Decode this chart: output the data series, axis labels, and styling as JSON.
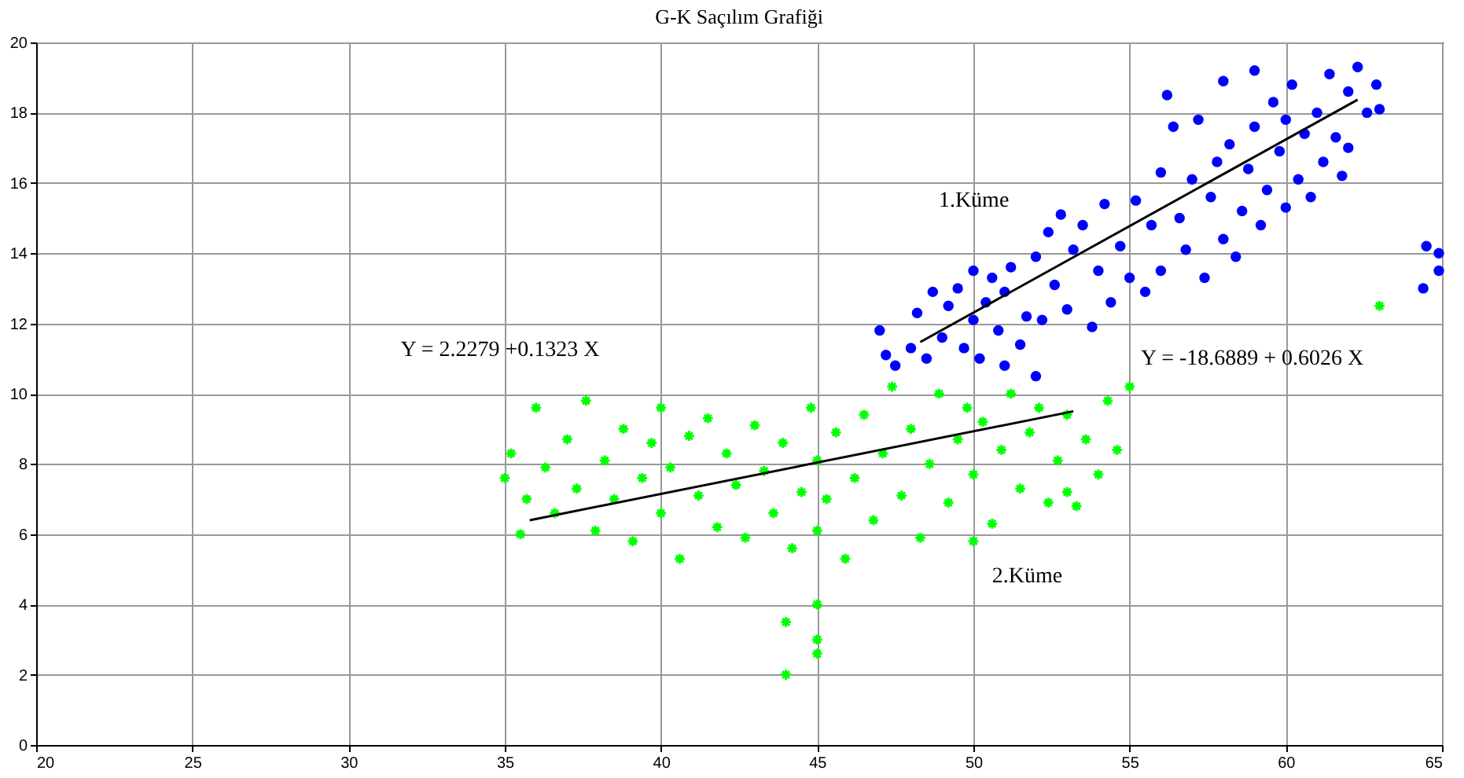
{
  "chart_data": {
    "type": "scatter",
    "title": "G-K Saçılım Grafiği",
    "xlim": [
      20,
      65
    ],
    "ylim": [
      0,
      20
    ],
    "xticks": [
      20,
      25,
      30,
      35,
      40,
      45,
      50,
      55,
      60,
      65
    ],
    "yticks": [
      0,
      2,
      4,
      6,
      8,
      10,
      12,
      14,
      16,
      18,
      20
    ],
    "grid": true,
    "series": [
      {
        "color": "#0000ff",
        "marker": "circle",
        "x": [
          47,
          47.2,
          47.5,
          48,
          48.2,
          48.5,
          48.7,
          49,
          49.2,
          49.5,
          49.7,
          50,
          50,
          50.2,
          50.4,
          50.6,
          50.8,
          51,
          51,
          51.2,
          51.5,
          51.7,
          52,
          52,
          52.2,
          52.4,
          52.6,
          52.8,
          53,
          53.2,
          53.5,
          53.8,
          54,
          54.2,
          54.4,
          54.7,
          55,
          55.2,
          55.5,
          55.7,
          56,
          56,
          56.2,
          56.4,
          56.6,
          56.8,
          57,
          57.2,
          57.4,
          57.6,
          57.8,
          58,
          58,
          58.2,
          58.4,
          58.6,
          58.8,
          59,
          59,
          59.2,
          59.4,
          59.6,
          59.8,
          60,
          60,
          60.2,
          60.4,
          60.6,
          60.8,
          61,
          61.2,
          61.4,
          61.6,
          61.8,
          62,
          62,
          62.3,
          62.6,
          62.9,
          63,
          64.4,
          64.5,
          64.9,
          64.9
        ],
        "values": [
          11.8,
          11.1,
          10.8,
          11.3,
          12.3,
          11.0,
          12.9,
          11.6,
          12.5,
          13.0,
          11.3,
          12.1,
          13.5,
          11.0,
          12.6,
          13.3,
          11.8,
          10.8,
          12.9,
          13.6,
          11.4,
          12.2,
          10.5,
          13.9,
          12.1,
          14.6,
          13.1,
          15.1,
          12.4,
          14.1,
          14.8,
          11.9,
          13.5,
          15.4,
          12.6,
          14.2,
          13.3,
          15.5,
          12.9,
          14.8,
          16.3,
          13.5,
          18.5,
          17.6,
          15.0,
          14.1,
          16.1,
          17.8,
          13.3,
          15.6,
          16.6,
          14.4,
          18.9,
          17.1,
          13.9,
          15.2,
          16.4,
          17.6,
          19.2,
          14.8,
          15.8,
          18.3,
          16.9,
          15.3,
          17.8,
          18.8,
          16.1,
          17.4,
          15.6,
          18.0,
          16.6,
          19.1,
          17.3,
          16.2,
          18.6,
          17.0,
          19.3,
          18.0,
          18.8,
          18.1,
          13.0,
          14.2,
          14.0,
          13.5
        ]
      },
      {
        "color": "#00ff00",
        "marker": "cross",
        "x": [
          35,
          35.2,
          35.5,
          35.7,
          36,
          36.3,
          36.6,
          37,
          37.3,
          37.6,
          37.9,
          38.2,
          38.5,
          38.8,
          39.1,
          39.4,
          39.7,
          40,
          40,
          40.3,
          40.6,
          40.9,
          41.2,
          41.5,
          41.8,
          42.1,
          42.4,
          42.7,
          43,
          43.3,
          43.6,
          43.9,
          44,
          44,
          44.2,
          44.5,
          44.8,
          45,
          45,
          45,
          45,
          45,
          45.3,
          45.6,
          45.9,
          46.2,
          46.5,
          46.8,
          47.1,
          47.4,
          47.7,
          48,
          48.3,
          48.6,
          48.9,
          49.2,
          49.5,
          49.8,
          50,
          50,
          50.3,
          50.6,
          50.9,
          51.2,
          51.5,
          51.8,
          52.1,
          52.4,
          52.7,
          53,
          53,
          53.3,
          53.6,
          54,
          54.3,
          54.6,
          55,
          63
        ],
        "values": [
          7.6,
          8.3,
          6.0,
          7.0,
          9.6,
          7.9,
          6.6,
          8.7,
          7.3,
          9.8,
          6.1,
          8.1,
          7.0,
          9.0,
          5.8,
          7.6,
          8.6,
          6.6,
          9.6,
          7.9,
          5.3,
          8.8,
          7.1,
          9.3,
          6.2,
          8.3,
          7.4,
          5.9,
          9.1,
          7.8,
          6.6,
          8.6,
          3.5,
          2.0,
          5.6,
          7.2,
          9.6,
          8.1,
          6.1,
          4.0,
          3.0,
          2.6,
          7.0,
          8.9,
          5.3,
          7.6,
          9.4,
          6.4,
          8.3,
          10.2,
          7.1,
          9.0,
          5.9,
          8.0,
          10.0,
          6.9,
          8.7,
          9.6,
          7.7,
          5.8,
          9.2,
          6.3,
          8.4,
          10.0,
          7.3,
          8.9,
          9.6,
          6.9,
          8.1,
          9.4,
          7.2,
          6.8,
          8.7,
          7.7,
          9.8,
          8.4,
          10.2,
          12.5
        ]
      },
      {
        "type": "line",
        "color": "#000000",
        "marker": "none",
        "x": [
          48.3,
          62.3
        ],
        "values": [
          11.47,
          18.37
        ]
      },
      {
        "type": "line",
        "color": "#000000",
        "marker": "none",
        "x": [
          35.8,
          53.2
        ],
        "values": [
          6.4,
          9.5
        ]
      }
    ],
    "annotations": [
      "1.Küme",
      "2.Küme",
      "Y = 2.2279 +0.1323 X",
      "Y = -18.6889 + 0.6026 X"
    ]
  }
}
